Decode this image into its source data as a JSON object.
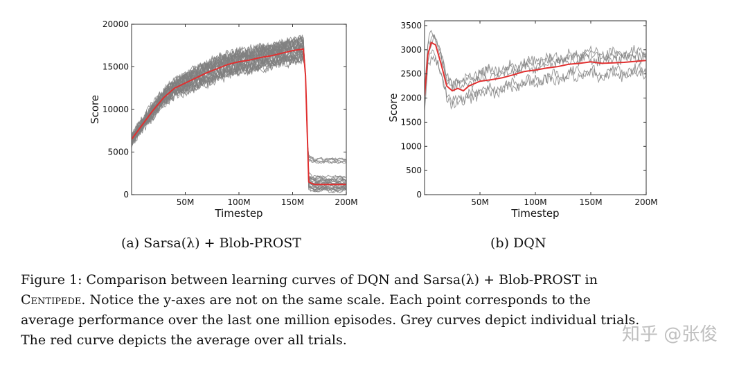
{
  "chart_data": [
    {
      "type": "line",
      "panel": "a",
      "subcaption": "(a) Sarsa(λ) + Blob-PROST",
      "xlabel": "Timestep",
      "ylabel": "Score",
      "xlim": [
        0,
        200
      ],
      "ylim": [
        0,
        20000
      ],
      "xticks": [
        50,
        100,
        150,
        200
      ],
      "xtick_labels": [
        "50M",
        "100M",
        "150M",
        "200M"
      ],
      "yticks": [
        0,
        5000,
        10000,
        15000,
        20000
      ],
      "ytick_labels": [
        "0",
        "5000",
        "10000",
        "15000",
        "20000"
      ],
      "grid": false,
      "individual_trials_color": "#808080",
      "average_color": "#e03030",
      "average": {
        "name": "Average over all trials",
        "x": [
          0,
          10,
          20,
          30,
          40,
          50,
          60,
          70,
          80,
          90,
          100,
          110,
          120,
          130,
          140,
          150,
          160,
          162,
          165,
          170,
          180,
          190,
          200
        ],
        "y": [
          6500,
          8200,
          9900,
          11400,
          12500,
          13100,
          13700,
          14300,
          14800,
          15300,
          15600,
          15800,
          16100,
          16300,
          16600,
          16900,
          17100,
          14000,
          1500,
          1200,
          1200,
          1200,
          1200
        ]
      },
      "trials_summary": {
        "count_approx": 30,
        "peak_range_before_drop": [
          14000,
          20000
        ],
        "drop_at": 162,
        "after_drop_range": [
          300,
          5000
        ]
      }
    },
    {
      "type": "line",
      "panel": "b",
      "subcaption": "(b) DQN",
      "xlabel": "Timestep",
      "ylabel": "Score",
      "xlim": [
        0,
        200
      ],
      "ylim": [
        0,
        3600
      ],
      "xticks": [
        50,
        100,
        150,
        200
      ],
      "xtick_labels": [
        "50M",
        "100M",
        "150M",
        "200M"
      ],
      "yticks": [
        0,
        500,
        1000,
        1500,
        2000,
        2500,
        3000,
        3500
      ],
      "ytick_labels": [
        "0",
        "500",
        "1000",
        "1500",
        "2000",
        "2500",
        "3000",
        "3500"
      ],
      "grid": false,
      "individual_trials_color": "#808080",
      "average_color": "#e03030",
      "average": {
        "name": "Average over all trials",
        "x": [
          0,
          3,
          6,
          10,
          15,
          20,
          25,
          30,
          35,
          40,
          50,
          60,
          70,
          80,
          90,
          100,
          110,
          120,
          130,
          140,
          150,
          160,
          170,
          180,
          190,
          200
        ],
        "y": [
          2050,
          2900,
          3150,
          3100,
          2700,
          2250,
          2150,
          2200,
          2150,
          2250,
          2350,
          2380,
          2420,
          2480,
          2550,
          2580,
          2620,
          2650,
          2700,
          2720,
          2750,
          2720,
          2730,
          2740,
          2760,
          2780
        ]
      },
      "trials_summary": {
        "count_approx": 5,
        "range": [
          1700,
          3550
        ]
      }
    }
  ],
  "caption": {
    "lines": [
      "Figure 1: Comparison between learning curves of DQN and Sarsa(λ) + Blob-PROST in",
      "Notice the y-axes are not on the same scale. Each point corresponds to the",
      "average performance over the last one million episodes. Grey curves depict individual trials.",
      "The red curve depicts the average over all trials."
    ],
    "smallcaps_word": "Centipede."
  },
  "watermark": "知乎 @张俊"
}
